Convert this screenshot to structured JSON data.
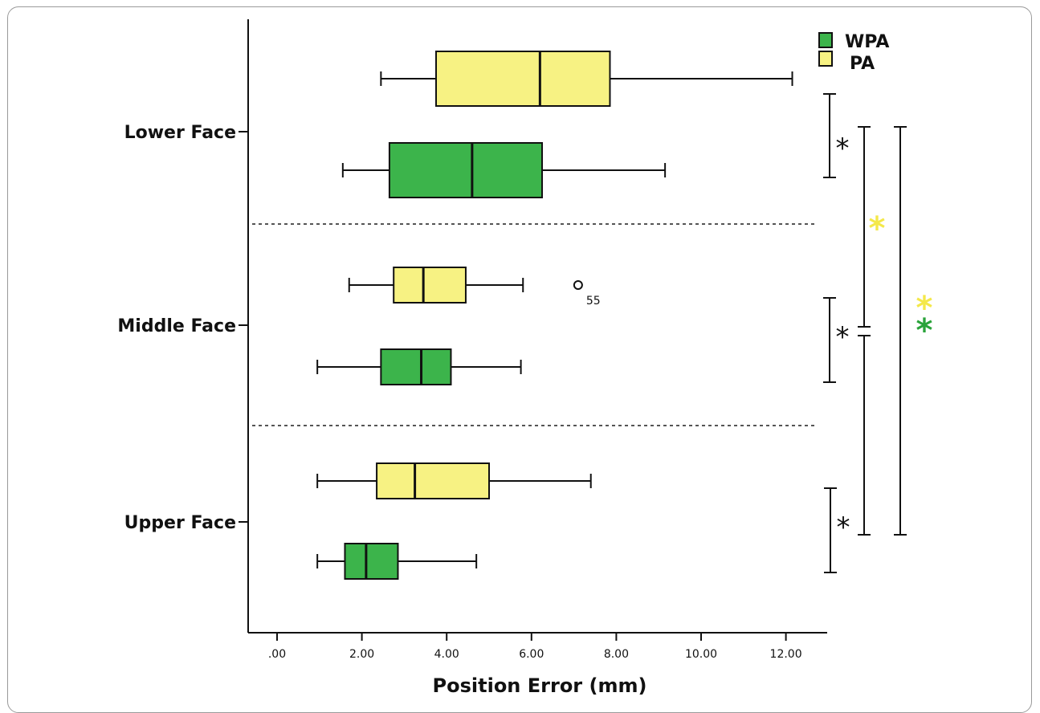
{
  "chart_data": {
    "type": "boxplot",
    "orientation": "horizontal",
    "title": "",
    "xlabel": "Position Error (mm)",
    "ylabel": "",
    "xlim": [
      0,
      13
    ],
    "xticks": [
      0,
      2,
      4,
      6,
      8,
      10,
      12
    ],
    "xtick_labels": [
      ".00",
      "2.00",
      "4.00",
      "6.00",
      "8.00",
      "10.00",
      "12.00"
    ],
    "categories": [
      "Lower Face",
      "Middle Face",
      "Upper Face"
    ],
    "series": [
      {
        "name": "PA",
        "color": "#f7f283",
        "boxes": [
          {
            "category": "Lower Face",
            "min": 2.45,
            "q1": 3.75,
            "median": 6.2,
            "q3": 7.85,
            "max": 12.15
          },
          {
            "category": "Middle Face",
            "min": 1.7,
            "q1": 2.75,
            "median": 3.45,
            "q3": 4.45,
            "max": 5.8,
            "outliers": [
              {
                "value": 7.1,
                "label": "55"
              }
            ]
          },
          {
            "category": "Upper Face",
            "min": 0.95,
            "q1": 2.35,
            "median": 3.25,
            "q3": 5.0,
            "max": 7.4
          }
        ]
      },
      {
        "name": "WPA",
        "color": "#3cb44b",
        "boxes": [
          {
            "category": "Lower Face",
            "min": 1.55,
            "q1": 2.65,
            "median": 4.6,
            "q3": 6.25,
            "max": 9.15
          },
          {
            "category": "Middle Face",
            "min": 0.95,
            "q1": 2.45,
            "median": 3.4,
            "q3": 4.1,
            "max": 5.75
          },
          {
            "category": "Upper Face",
            "min": 0.95,
            "q1": 1.6,
            "median": 2.1,
            "q3": 2.85,
            "max": 4.7
          }
        ]
      }
    ],
    "legend": {
      "position": "top-right",
      "entries": [
        {
          "label": "WPA",
          "color": "#3cb44b"
        },
        {
          "label": "PA",
          "color": "#f7f283"
        }
      ]
    },
    "significance_marks": [
      {
        "symbol": "*",
        "color": "#111111",
        "scope": "Lower Face"
      },
      {
        "symbol": "*",
        "color": "#111111",
        "scope": "Middle Face"
      },
      {
        "symbol": "*",
        "color": "#111111",
        "scope": "Upper Face"
      },
      {
        "symbol": "*",
        "color": "#f4e84a",
        "scope": "Lower Face vs Upper Face"
      },
      {
        "symbol": "*",
        "color": "#f4e84a",
        "scope": "Lower Face vs Upper Face (outer)"
      },
      {
        "symbol": "*",
        "color": "#29a33a",
        "scope": "Lower Face vs Upper Face (outer)"
      }
    ]
  }
}
